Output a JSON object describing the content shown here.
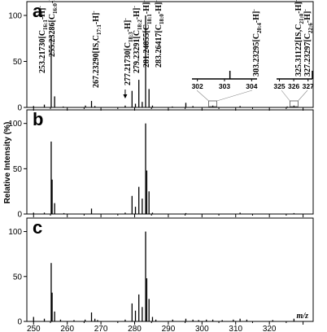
{
  "chart_data": [
    {
      "panel_label": "a",
      "type": "bar",
      "yticks": [
        0,
        50,
        100
      ],
      "ylim": [
        0,
        115
      ],
      "xlim": [
        248,
        333
      ],
      "peaks": [
        {
          "x": 250.0,
          "y": 1.5
        },
        {
          "x": 253.2,
          "y": 3
        },
        {
          "x": 255.23,
          "y": 78
        },
        {
          "x": 256.24,
          "y": 12
        },
        {
          "x": 258.8,
          "y": 1
        },
        {
          "x": 265.4,
          "y": 2
        },
        {
          "x": 267.2,
          "y": 7
        },
        {
          "x": 268.2,
          "y": 1.5
        },
        {
          "x": 277.2,
          "y": 2
        },
        {
          "x": 279.23,
          "y": 18
        },
        {
          "x": 280.24,
          "y": 4
        },
        {
          "x": 281.25,
          "y": 30
        },
        {
          "x": 282.25,
          "y": 6
        },
        {
          "x": 283.26,
          "y": 100
        },
        {
          "x": 284.27,
          "y": 20
        },
        {
          "x": 285.3,
          "y": 2
        },
        {
          "x": 291.2,
          "y": 1
        },
        {
          "x": 295.2,
          "y": 5
        },
        {
          "x": 297.3,
          "y": 1.5
        },
        {
          "x": 303.2,
          "y": 2
        },
        {
          "x": 311.3,
          "y": 1.5
        },
        {
          "x": 325.3,
          "y": 1
        },
        {
          "x": 327.3,
          "y": 2
        }
      ],
      "annotations": [
        {
          "mz": "253.21730",
          "formula": "[C",
          "sub": "16:1",
          "tail": "-H]",
          "sup": "-"
        },
        {
          "mz": "255.23286",
          "formula": "[C",
          "sub": "16:0",
          "tail": "-H]",
          "sup": "-"
        },
        {
          "mz": "267.23290",
          "formula": "[IS,C",
          "sub": "17:1",
          "tail": "-H]",
          "sup": "-"
        },
        {
          "mz": "277.21730",
          "formula": "[C",
          "sub": "18:3",
          "tail": "-H]",
          "sup": "-"
        },
        {
          "mz": "279.23291",
          "formula": "[C",
          "sub": "18:2",
          "tail": "-H]",
          "sup": "-"
        },
        {
          "mz": "281.24855",
          "formula": "[C",
          "sub": "18:1",
          "tail": "-H]",
          "sup": "-"
        },
        {
          "mz": "283.26417",
          "formula": "[C",
          "sub": "18:0",
          "tail": "-H]",
          "sup": "-"
        },
        {
          "mz": "303.23295",
          "formula": "[C",
          "sub": "20:4",
          "tail": "-H]",
          "sup": "-"
        },
        {
          "mz": "325.31122",
          "formula": "[IS,C",
          "sub": "21:0",
          "tail": "-H]",
          "sup": "-"
        },
        {
          "mz": "327.23297",
          "formula": "[C",
          "sub": "22:6",
          "tail": "-H]",
          "sup": "-"
        }
      ],
      "insets": [
        {
          "ticks": [
            "302",
            "303",
            "304"
          ],
          "range": [
            301.8,
            304.2
          ],
          "zoom_box_x": 303.2
        },
        {
          "ticks": [
            "325",
            "326",
            "327"
          ],
          "range": [
            324.8,
            327.3
          ],
          "zoom_box_x": 327.3
        }
      ]
    },
    {
      "panel_label": "b",
      "type": "bar",
      "yticks": [
        0,
        50,
        100
      ],
      "ylim": [
        0,
        115
      ],
      "xlim": [
        248,
        333
      ],
      "peaks": [
        {
          "x": 250.0,
          "y": 1.5
        },
        {
          "x": 253.2,
          "y": 1.5
        },
        {
          "x": 255.23,
          "y": 80
        },
        {
          "x": 255.5,
          "y": 38
        },
        {
          "x": 256.24,
          "y": 12
        },
        {
          "x": 259.0,
          "y": 1
        },
        {
          "x": 267.2,
          "y": 6
        },
        {
          "x": 277.2,
          "y": 1.5
        },
        {
          "x": 279.23,
          "y": 20
        },
        {
          "x": 280.24,
          "y": 8
        },
        {
          "x": 281.25,
          "y": 30
        },
        {
          "x": 282.25,
          "y": 17
        },
        {
          "x": 283.26,
          "y": 100
        },
        {
          "x": 283.6,
          "y": 48
        },
        {
          "x": 284.27,
          "y": 25
        },
        {
          "x": 285.3,
          "y": 1.5
        },
        {
          "x": 295.2,
          "y": 1
        },
        {
          "x": 311.3,
          "y": 1.5
        },
        {
          "x": 327.3,
          "y": 1
        }
      ]
    },
    {
      "panel_label": "c",
      "type": "bar",
      "yticks": [
        0,
        50,
        100
      ],
      "ylim": [
        0,
        115
      ],
      "xlim": [
        248,
        333
      ],
      "xlabel": "m/z",
      "xticks": [
        250,
        260,
        270,
        280,
        290,
        300,
        310,
        320
      ],
      "peaks": [
        {
          "x": 250.0,
          "y": 5
        },
        {
          "x": 253.2,
          "y": 3
        },
        {
          "x": 255.23,
          "y": 65
        },
        {
          "x": 255.5,
          "y": 32
        },
        {
          "x": 256.24,
          "y": 11
        },
        {
          "x": 258.0,
          "y": 2
        },
        {
          "x": 262.0,
          "y": 1.5
        },
        {
          "x": 265.3,
          "y": 2
        },
        {
          "x": 267.2,
          "y": 10
        },
        {
          "x": 268.2,
          "y": 3
        },
        {
          "x": 269.0,
          "y": 1.5
        },
        {
          "x": 277.2,
          "y": 2
        },
        {
          "x": 279.23,
          "y": 20
        },
        {
          "x": 280.24,
          "y": 12
        },
        {
          "x": 281.25,
          "y": 30
        },
        {
          "x": 282.25,
          "y": 16
        },
        {
          "x": 283.26,
          "y": 100
        },
        {
          "x": 283.6,
          "y": 48
        },
        {
          "x": 284.27,
          "y": 25
        },
        {
          "x": 285.3,
          "y": 5
        },
        {
          "x": 286.3,
          "y": 2
        },
        {
          "x": 291.3,
          "y": 2
        },
        {
          "x": 295.2,
          "y": 3
        },
        {
          "x": 297.3,
          "y": 2
        },
        {
          "x": 299.0,
          "y": 1.5
        },
        {
          "x": 301.3,
          "y": 2
        },
        {
          "x": 303.2,
          "y": 2
        },
        {
          "x": 306.0,
          "y": 1.5
        },
        {
          "x": 309.3,
          "y": 2
        },
        {
          "x": 311.3,
          "y": 3
        },
        {
          "x": 313.3,
          "y": 2
        },
        {
          "x": 321.0,
          "y": 1.5
        },
        {
          "x": 327.3,
          "y": 3
        }
      ]
    }
  ],
  "shared_ylabel": "Relative Intensity (%)"
}
